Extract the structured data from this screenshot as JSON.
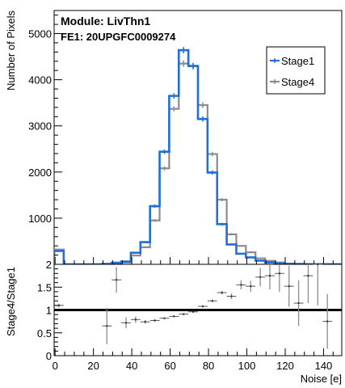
{
  "chart_data": [
    {
      "type": "histogram",
      "title_lines": [
        "Module: LivThn1",
        "FE1: 20UPGFC0009274"
      ],
      "ylabel": "Number of Pixels",
      "ylim": [
        0,
        5500
      ],
      "xlim": [
        -0.5,
        149.5
      ],
      "y_ticks": [
        0,
        1000,
        2000,
        3000,
        4000,
        5000
      ],
      "legend_position": "top-right",
      "bin_width": 5,
      "bin_starts": [
        -0.5,
        4.5,
        9.5,
        14.5,
        19.5,
        24.5,
        29.5,
        34.5,
        39.5,
        44.5,
        49.5,
        54.5,
        59.5,
        64.5,
        69.5,
        74.5,
        79.5,
        84.5,
        89.5,
        94.5,
        99.5,
        104.5,
        109.5,
        114.5,
        119.5,
        124.5,
        129.5,
        134.5,
        139.5,
        144.5
      ],
      "series": [
        {
          "name": "Stage1",
          "color": "#1f6fd6",
          "values": [
            290,
            0,
            0,
            0,
            0,
            10,
            30,
            60,
            250,
            480,
            1260,
            2440,
            3650,
            4640,
            4300,
            3150,
            1990,
            870,
            430,
            230,
            150,
            80,
            40,
            20,
            10,
            8,
            4,
            3,
            2,
            1
          ]
        },
        {
          "name": "Stage4",
          "color": "#8c8c8c",
          "values": [
            320,
            0,
            0,
            0,
            0,
            5,
            40,
            40,
            190,
            370,
            950,
            2080,
            3370,
            4350,
            4290,
            3450,
            2390,
            1400,
            650,
            400,
            260,
            130,
            75,
            40,
            15,
            10,
            5,
            5,
            2,
            1
          ]
        }
      ]
    },
    {
      "type": "scatter_errorbar",
      "ylabel": "Stage4/Stage1",
      "xlabel": "Noise [e]",
      "ylim": [
        0,
        2
      ],
      "xlim": [
        -0.5,
        149.5
      ],
      "y_ticks": [
        0,
        0.5,
        1,
        1.5,
        2
      ],
      "y_tick_labels": [
        "0",
        "0.5",
        "1",
        "1.5",
        "2"
      ],
      "x_ticks": [
        0,
        20,
        40,
        60,
        80,
        100,
        120,
        140
      ],
      "x_tick_labels": [
        "0",
        "20",
        "40",
        "60",
        "80",
        "100",
        "120",
        "140"
      ],
      "reference_line": 1,
      "points": [
        {
          "x": 2,
          "y": 1.1,
          "err": 0.04
        },
        {
          "x": 27,
          "y": 0.65,
          "err": 0.4
        },
        {
          "x": 32,
          "y": 1.66,
          "err": 0.28
        },
        {
          "x": 37,
          "y": 0.72,
          "err": 0.12
        },
        {
          "x": 42,
          "y": 0.79,
          "err": 0.07
        },
        {
          "x": 47,
          "y": 0.74,
          "err": 0.04
        },
        {
          "x": 52,
          "y": 0.77,
          "err": 0.03
        },
        {
          "x": 57,
          "y": 0.82,
          "err": 0.02
        },
        {
          "x": 62,
          "y": 0.86,
          "err": 0.02
        },
        {
          "x": 67,
          "y": 0.91,
          "err": 0.02
        },
        {
          "x": 72,
          "y": 0.96,
          "err": 0.02
        },
        {
          "x": 77,
          "y": 1.08,
          "err": 0.02
        },
        {
          "x": 82,
          "y": 1.2,
          "err": 0.03
        },
        {
          "x": 87,
          "y": 1.38,
          "err": 0.04
        },
        {
          "x": 92,
          "y": 1.3,
          "err": 0.06
        },
        {
          "x": 97,
          "y": 1.55,
          "err": 0.1
        },
        {
          "x": 102,
          "y": 1.52,
          "err": 0.12
        },
        {
          "x": 107,
          "y": 1.72,
          "err": 0.2
        },
        {
          "x": 112,
          "y": 1.75,
          "err": 0.3
        },
        {
          "x": 117,
          "y": 1.8,
          "err": 0.4
        },
        {
          "x": 122,
          "y": 1.52,
          "err": 0.45
        },
        {
          "x": 127,
          "y": 1.15,
          "err": 0.5
        },
        {
          "x": 132,
          "y": 1.75,
          "err": 0.6
        },
        {
          "x": 137,
          "y": 2.0,
          "err": 0.9
        },
        {
          "x": 142,
          "y": 0.75,
          "err": 0.6
        }
      ]
    }
  ]
}
